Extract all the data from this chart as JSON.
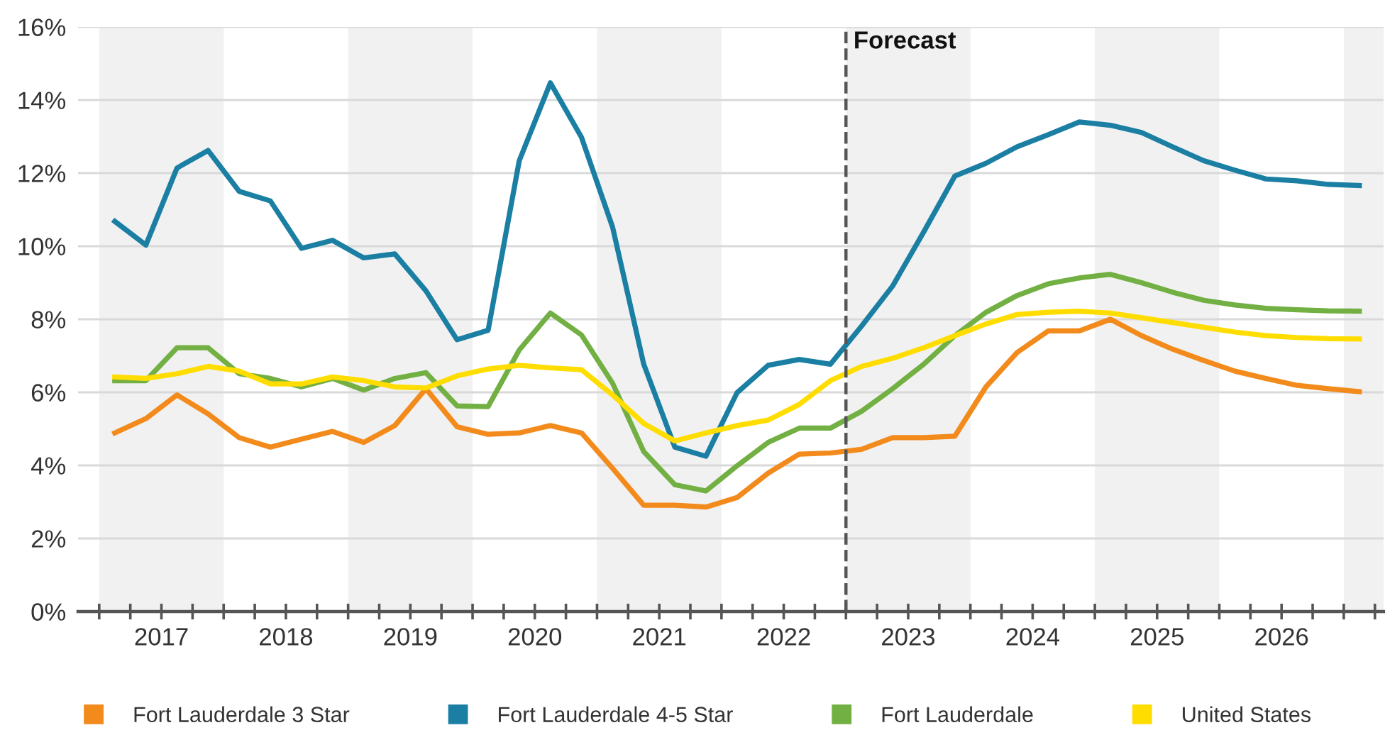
{
  "chart_data": {
    "type": "line",
    "x": [
      2017.125,
      2017.375,
      2017.625,
      2017.875,
      2018.125,
      2018.375,
      2018.625,
      2018.875,
      2019.125,
      2019.375,
      2019.625,
      2019.875,
      2020.125,
      2020.375,
      2020.625,
      2020.875,
      2021.125,
      2021.375,
      2021.625,
      2021.875,
      2022.125,
      2022.375,
      2022.625,
      2022.875,
      2023.125,
      2023.375,
      2023.625,
      2023.875,
      2024.125,
      2024.375,
      2024.625,
      2024.875,
      2025.125,
      2025.375,
      2025.625,
      2025.875,
      2026.125,
      2026.375,
      2026.625,
      2026.875,
      2027.125
    ],
    "series": [
      {
        "name": "Fort Lauderdale 3 Star",
        "color": "#f28a1c",
        "values": [
          4.89,
          5.28,
          5.93,
          5.41,
          4.76,
          4.5,
          4.72,
          4.93,
          4.63,
          5.09,
          6.1,
          5.06,
          4.85,
          4.89,
          5.09,
          4.89,
          3.92,
          2.91,
          2.91,
          2.86,
          3.12,
          3.79,
          4.31,
          4.34,
          4.44,
          4.76,
          4.76,
          4.8,
          6.15,
          7.09,
          7.68,
          7.68,
          8.0,
          7.55,
          7.18,
          6.87,
          6.58,
          6.38,
          6.19,
          6.1,
          6.02
        ]
      },
      {
        "name": "Fort Lauderdale 4-5 Star",
        "color": "#1a7fa3",
        "values": [
          10.68,
          10.03,
          12.14,
          12.62,
          11.5,
          11.24,
          9.94,
          10.16,
          9.68,
          9.79,
          8.78,
          7.44,
          7.7,
          12.34,
          14.47,
          12.98,
          10.52,
          6.77,
          4.5,
          4.25,
          5.99,
          6.74,
          6.9,
          6.77,
          7.81,
          8.91,
          10.39,
          11.92,
          12.27,
          12.72,
          13.05,
          13.4,
          13.31,
          13.11,
          12.72,
          12.34,
          12.08,
          11.84,
          11.79,
          11.69,
          11.66
        ]
      },
      {
        "name": "Fort Lauderdale",
        "color": "#72b043",
        "values": [
          6.32,
          6.32,
          7.22,
          7.22,
          6.51,
          6.38,
          6.15,
          6.38,
          6.06,
          6.38,
          6.54,
          5.63,
          5.61,
          7.16,
          8.17,
          7.57,
          6.25,
          4.38,
          3.47,
          3.3,
          3.99,
          4.63,
          5.02,
          5.02,
          5.48,
          6.1,
          6.77,
          7.55,
          8.19,
          8.65,
          8.97,
          9.13,
          9.23,
          9.0,
          8.74,
          8.52,
          8.39,
          8.3,
          8.26,
          8.23,
          8.22
        ]
      },
      {
        "name": "United States",
        "color": "#ffdd00",
        "values": [
          6.42,
          6.38,
          6.51,
          6.71,
          6.58,
          6.23,
          6.23,
          6.42,
          6.32,
          6.15,
          6.12,
          6.45,
          6.64,
          6.74,
          6.67,
          6.62,
          5.93,
          5.15,
          4.67,
          4.89,
          5.09,
          5.24,
          5.67,
          6.32,
          6.71,
          6.93,
          7.22,
          7.55,
          7.87,
          8.13,
          8.19,
          8.22,
          8.17,
          8.04,
          7.91,
          7.78,
          7.65,
          7.55,
          7.5,
          7.47,
          7.46
        ]
      }
    ],
    "xlim": [
      2016.83,
      2027.32
    ],
    "xticks": [
      {
        "value": 2017,
        "label": null
      },
      {
        "value": 2017.25,
        "label": null
      },
      {
        "value": 2017.5,
        "label": "2017"
      },
      {
        "value": 2017.75,
        "label": null
      },
      {
        "value": 2018,
        "label": null
      },
      {
        "value": 2018.25,
        "label": null
      },
      {
        "value": 2018.5,
        "label": "2018"
      },
      {
        "value": 2018.75,
        "label": null
      },
      {
        "value": 2019,
        "label": null
      },
      {
        "value": 2019.25,
        "label": null
      },
      {
        "value": 2019.5,
        "label": "2019"
      },
      {
        "value": 2019.75,
        "label": null
      },
      {
        "value": 2020,
        "label": null
      },
      {
        "value": 2020.25,
        "label": null
      },
      {
        "value": 2020.5,
        "label": "2020"
      },
      {
        "value": 2020.75,
        "label": null
      },
      {
        "value": 2021,
        "label": null
      },
      {
        "value": 2021.25,
        "label": null
      },
      {
        "value": 2021.5,
        "label": "2021"
      },
      {
        "value": 2021.75,
        "label": null
      },
      {
        "value": 2022,
        "label": null
      },
      {
        "value": 2022.25,
        "label": null
      },
      {
        "value": 2022.5,
        "label": "2022"
      },
      {
        "value": 2022.75,
        "label": null
      },
      {
        "value": 2023,
        "label": null
      },
      {
        "value": 2023.25,
        "label": null
      },
      {
        "value": 2023.5,
        "label": "2023"
      },
      {
        "value": 2023.75,
        "label": null
      },
      {
        "value": 2024,
        "label": null
      },
      {
        "value": 2024.25,
        "label": null
      },
      {
        "value": 2024.5,
        "label": "2024"
      },
      {
        "value": 2024.75,
        "label": null
      },
      {
        "value": 2025,
        "label": null
      },
      {
        "value": 2025.25,
        "label": null
      },
      {
        "value": 2025.5,
        "label": "2025"
      },
      {
        "value": 2025.75,
        "label": null
      },
      {
        "value": 2026,
        "label": null
      },
      {
        "value": 2026.25,
        "label": null
      },
      {
        "value": 2026.5,
        "label": "2026"
      },
      {
        "value": 2026.75,
        "label": null
      },
      {
        "value": 2027,
        "label": null
      },
      {
        "value": 2027.25,
        "label": null
      }
    ],
    "ylim": [
      0,
      16
    ],
    "yticks": [
      {
        "value": 0,
        "label": "0%"
      },
      {
        "value": 2,
        "label": "2%"
      },
      {
        "value": 4,
        "label": "4%"
      },
      {
        "value": 6,
        "label": "6%"
      },
      {
        "value": 8,
        "label": "8%"
      },
      {
        "value": 10,
        "label": "10%"
      },
      {
        "value": 12,
        "label": "12%"
      },
      {
        "value": 14,
        "label": "14%"
      },
      {
        "value": 16,
        "label": "16%"
      }
    ],
    "ref_lines": [
      {
        "axis": "x",
        "value": 2023,
        "label": "Forecast",
        "color": "#555555",
        "line_style": "dashed"
      }
    ],
    "bands": [
      {
        "axis": "x",
        "from": 2017,
        "to": 2018,
        "color": "#f1f1f1"
      },
      {
        "axis": "x",
        "from": 2019,
        "to": 2020,
        "color": "#f1f1f1"
      },
      {
        "axis": "x",
        "from": 2021,
        "to": 2022,
        "color": "#f1f1f1"
      },
      {
        "axis": "x",
        "from": 2023,
        "to": 2024,
        "color": "#f1f1f1"
      },
      {
        "axis": "x",
        "from": 2025,
        "to": 2026,
        "color": "#f1f1f1"
      },
      {
        "axis": "x",
        "from": 2027,
        "to": 2027.32,
        "color": "#f1f1f1"
      }
    ],
    "grid": "y",
    "legend": "bottom",
    "marker": "none",
    "line_style": "solid"
  }
}
